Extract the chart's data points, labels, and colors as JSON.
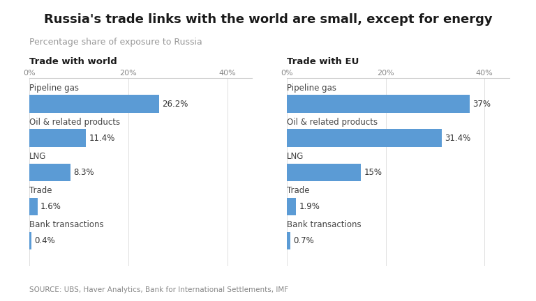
{
  "title": "Russia's trade links with the world are small, except for energy",
  "subtitle": "Percentage share of exposure to Russia",
  "source": "SOURCE: UBS, Haver Analytics, Bank for International Settlements, IMF",
  "left_panel_title": "Trade with world",
  "right_panel_title": "Trade with EU",
  "categories": [
    "Pipeline gas",
    "Oil & related products",
    "LNG",
    "Trade",
    "Bank transactions"
  ],
  "world_values": [
    26.2,
    11.4,
    8.3,
    1.6,
    0.4
  ],
  "world_labels": [
    "26.2%",
    "11.4%",
    "8.3%",
    "1.6%",
    "0.4%"
  ],
  "eu_values": [
    37.0,
    31.4,
    15.0,
    1.9,
    0.7
  ],
  "eu_labels": [
    "37%",
    "31.4%",
    "15%",
    "1.9%",
    "0.7%"
  ],
  "bar_color": "#5b9bd5",
  "xlim": [
    0,
    45
  ],
  "xticks": [
    0,
    20,
    40
  ],
  "xticklabels": [
    "0%",
    "20%",
    "40%"
  ],
  "background_color": "#ffffff",
  "title_fontsize": 13,
  "subtitle_fontsize": 9,
  "category_fontsize": 8.5,
  "value_fontsize": 8.5,
  "axis_label_fontsize": 8,
  "panel_title_fontsize": 9.5,
  "source_fontsize": 7.5,
  "bar_height": 0.52
}
